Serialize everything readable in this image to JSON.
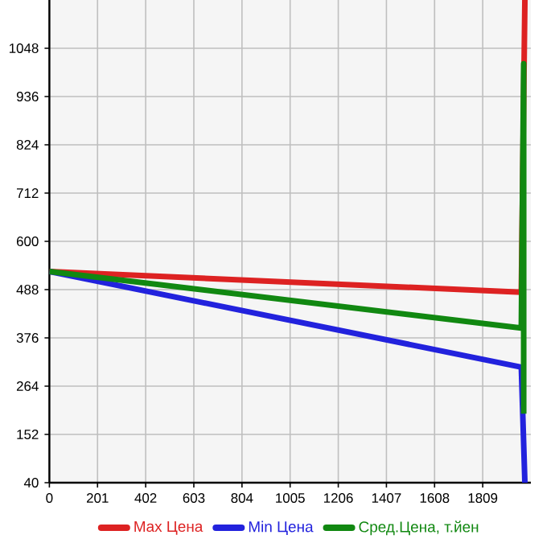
{
  "chart_data": {
    "type": "line",
    "xlim": [
      0,
      2010
    ],
    "xticks": [
      0,
      201,
      402,
      603,
      804,
      1005,
      1206,
      1407,
      1608,
      1809
    ],
    "ylim": [
      40,
      1160
    ],
    "yticks": [
      40,
      152,
      264,
      376,
      488,
      600,
      712,
      824,
      936,
      1048
    ],
    "grid": true,
    "legend": "bottom",
    "marker": "none",
    "line_style": "solid",
    "series": [
      {
        "name": "Max Цена",
        "color": "#dd2222",
        "x": [
          0,
          1970,
          1985
        ],
        "values": [
          530,
          482,
          1160
        ]
      },
      {
        "name": "Min Цена",
        "color": "#2222dd",
        "x": [
          0,
          1970,
          1985
        ],
        "values": [
          530,
          308,
          40
        ]
      },
      {
        "name": "Сред.Цена, т.йен",
        "color": "#118811",
        "x": [
          0,
          1970,
          1980,
          1980
        ],
        "values": [
          530,
          399,
          1012,
          200
        ]
      }
    ]
  }
}
